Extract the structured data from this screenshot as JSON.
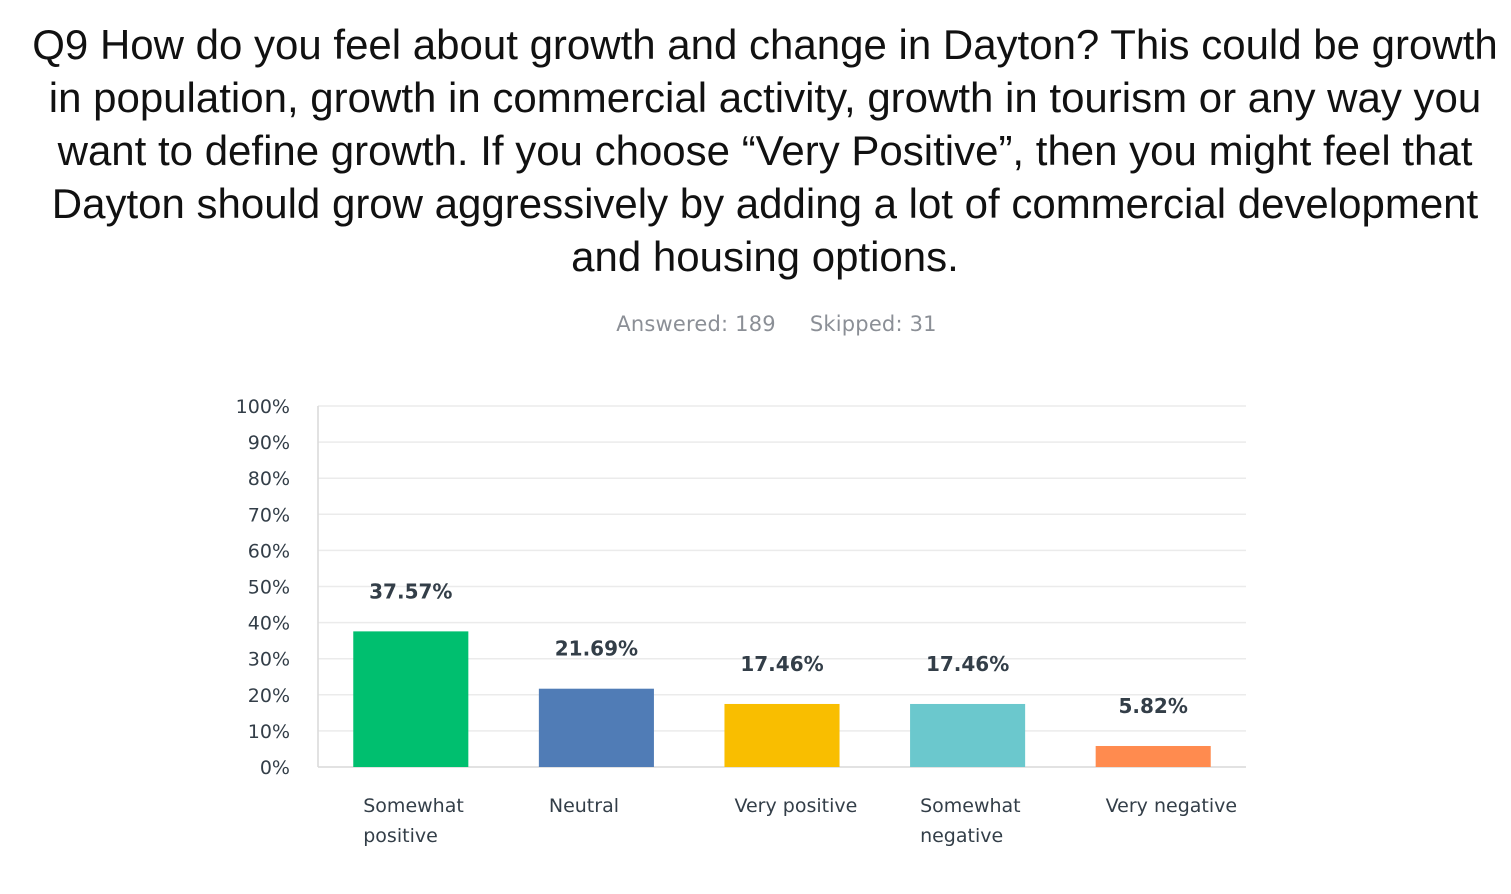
{
  "question": "Q9 How do you feel about growth and change in Dayton?  This could be growth in population, growth in commercial activity, growth in tourism or any way you want to define growth.  If you choose “Very Positive”, then you might feel that Dayton should grow aggressively by adding a lot of commercial development and housing options.",
  "answered": "Answered: 189",
  "skipped": "Skipped: 31",
  "chart_data": {
    "type": "bar",
    "categories": [
      "Somewhat positive",
      "Neutral",
      "Very positive",
      "Somewhat negative",
      "Very negative"
    ],
    "category_lines": [
      [
        "Somewhat",
        "positive"
      ],
      [
        "Neutral"
      ],
      [
        "Very positive"
      ],
      [
        "Somewhat",
        "negative"
      ],
      [
        "Very negative"
      ]
    ],
    "values": [
      37.57,
      21.69,
      17.46,
      17.46,
      5.82
    ],
    "value_labels": [
      "37.57%",
      "21.69%",
      "17.46%",
      "17.46%",
      "5.82%"
    ],
    "colors": [
      "#00bf6f",
      "#507cb6",
      "#f9be00",
      "#6bc8cd",
      "#ff8b4f"
    ],
    "ylim": [
      0,
      100
    ],
    "yticks": [
      "0%",
      "10%",
      "20%",
      "30%",
      "40%",
      "50%",
      "60%",
      "70%",
      "80%",
      "90%",
      "100%"
    ],
    "grid": true
  }
}
